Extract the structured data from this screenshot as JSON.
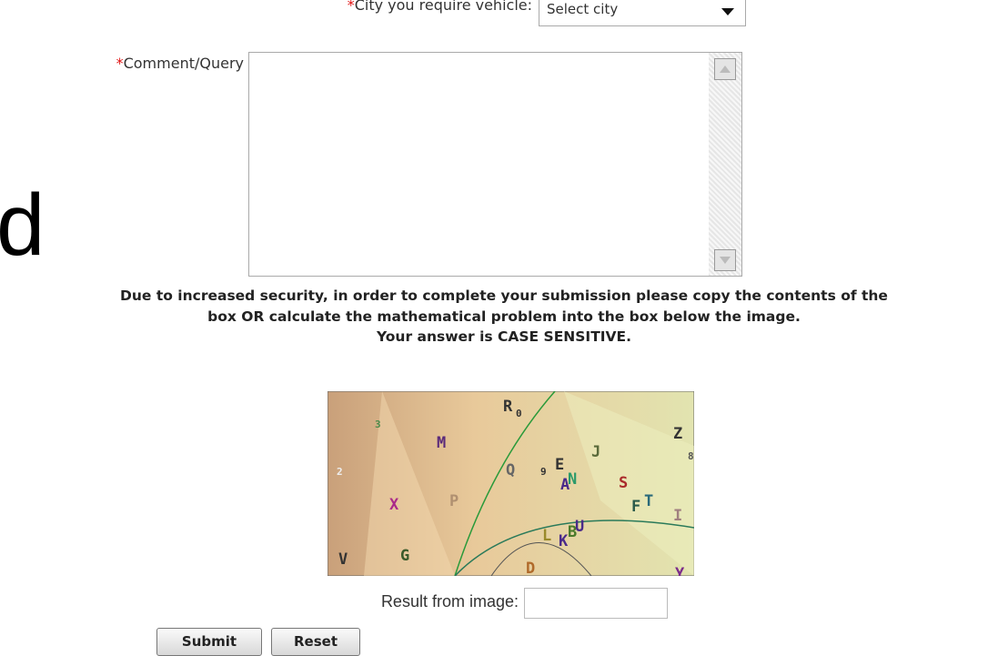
{
  "form": {
    "city": {
      "required": "*",
      "label": "City you require vehicle:",
      "placeholder": "Select city"
    },
    "comment": {
      "required": "*",
      "label": "Comment/Query"
    },
    "side_text": "d",
    "notice": [
      "Due to increased security, in order to complete your submission please copy the contents of the",
      "box OR calculate the mathematical problem into the box below the image.",
      "Your answer is CASE SENSITIVE."
    ],
    "captcha": {
      "glyphs": [
        "R",
        "0",
        "3",
        "M",
        "J",
        "Z",
        "8",
        "2",
        "Q",
        "9",
        "E",
        "A",
        "N",
        "S",
        "F",
        "T",
        "I",
        "X",
        "P",
        "L",
        "K",
        "B",
        "U",
        "V",
        "G",
        "D",
        "Y"
      ]
    },
    "result_label": "Result from image:",
    "buttons": [
      "Submit",
      "Reset"
    ]
  }
}
